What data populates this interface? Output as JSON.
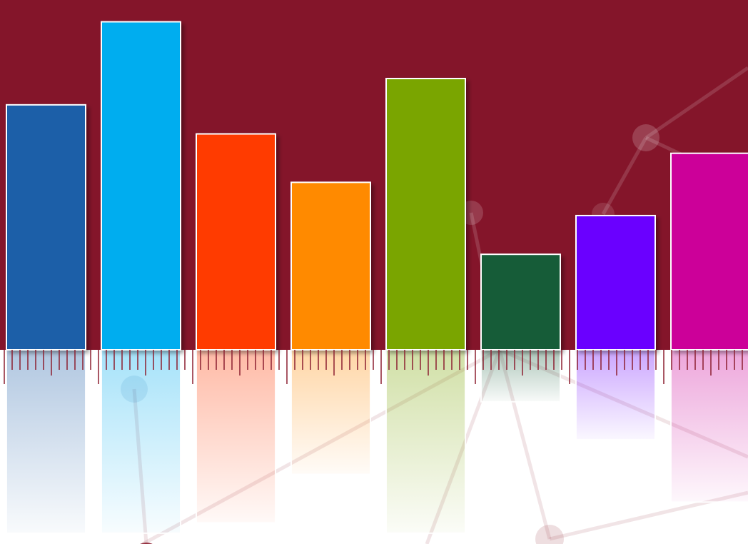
{
  "chart_data": {
    "type": "bar",
    "title": "",
    "xlabel": "",
    "ylabel": "",
    "categories": [
      "",
      "",
      "",
      "",
      "",
      "",
      "",
      ""
    ],
    "values": [
      354,
      474,
      312,
      242,
      392,
      138,
      194,
      284
    ],
    "reflection_values": [
      265,
      265,
      250,
      180,
      265,
      75,
      130,
      220
    ],
    "ylim": [
      0,
      490
    ],
    "colors": [
      "#1f5fa8",
      "#00adef",
      "#ff3a00",
      "#ff8a00",
      "#7aa500",
      "#145c38",
      "#6a00ff",
      "#cc0099"
    ],
    "grid": false,
    "legend": "none"
  },
  "theme": {
    "background_top": "#84152a",
    "background_bottom": "#ffffff",
    "ruler_color": "#8c1f30",
    "bar_border": "#ffffff"
  }
}
